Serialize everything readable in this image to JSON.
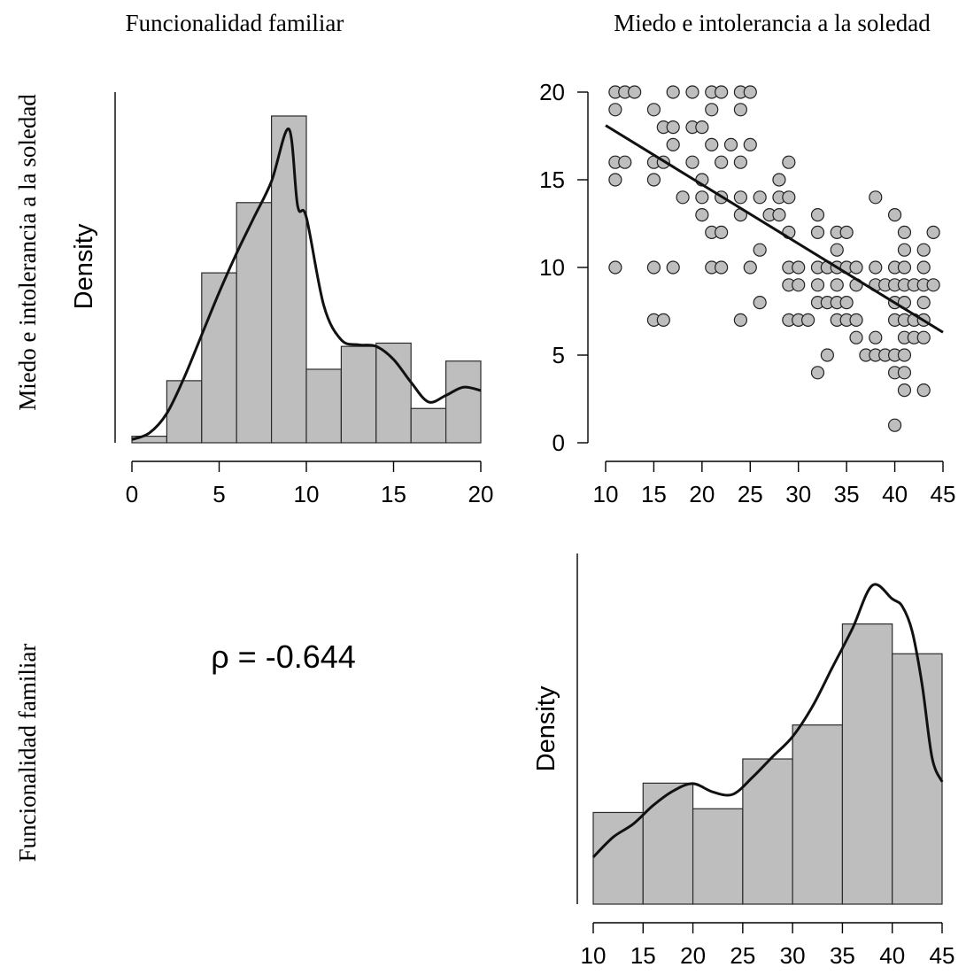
{
  "column_labels": [
    "Funcionalidad familiar",
    "Miedo e intolerancia a la soledad"
  ],
  "row_labels": [
    "Miedo e intolerancia a la soledad",
    "Funcionalidad familiar"
  ],
  "correlation_text": "ρ = -0.644",
  "colors": {
    "bar_fill": "#bebebe",
    "point_fill": "#bebebe",
    "line": "#111111"
  },
  "chart_data": [
    {
      "type": "bar",
      "panel": "top-left",
      "title": "",
      "xlabel": "",
      "ylabel": "Density",
      "xlim": [
        0,
        20
      ],
      "xticks": [
        0,
        5,
        10,
        15,
        20
      ],
      "bin_edges": [
        0,
        2,
        4,
        6,
        8,
        10,
        12,
        14,
        16,
        18,
        20
      ],
      "density": [
        0.002,
        0.019,
        0.052,
        0.0735,
        0.1,
        0.0225,
        0.0295,
        0.0305,
        0.0105,
        0.025
      ],
      "kde": {
        "x": [
          0,
          1,
          2,
          3,
          4,
          5,
          6,
          7,
          8,
          9,
          9.5,
          10,
          11,
          12,
          13,
          14,
          15,
          16,
          17,
          18,
          19,
          20
        ],
        "y": [
          0.001,
          0.003,
          0.009,
          0.02,
          0.033,
          0.046,
          0.058,
          0.069,
          0.08,
          0.096,
          0.0725,
          0.069,
          0.042,
          0.0315,
          0.03,
          0.0295,
          0.0255,
          0.0185,
          0.0125,
          0.0145,
          0.017,
          0.016
        ]
      }
    },
    {
      "type": "scatter",
      "panel": "top-right",
      "title": "",
      "xlabel": "",
      "ylabel": "",
      "xlim": [
        10,
        45
      ],
      "ylim": [
        0,
        20
      ],
      "xticks": [
        10,
        15,
        20,
        25,
        30,
        35,
        40,
        45
      ],
      "yticks": [
        0,
        5,
        10,
        15,
        20
      ],
      "points": [
        [
          11,
          20
        ],
        [
          12,
          20
        ],
        [
          13,
          20
        ],
        [
          17,
          20
        ],
        [
          19,
          20
        ],
        [
          21,
          20
        ],
        [
          22,
          20
        ],
        [
          24,
          20
        ],
        [
          25,
          20
        ],
        [
          11,
          19
        ],
        [
          15,
          19
        ],
        [
          21,
          19
        ],
        [
          24,
          19
        ],
        [
          16,
          18
        ],
        [
          17,
          18
        ],
        [
          19,
          18
        ],
        [
          20,
          18
        ],
        [
          17,
          17
        ],
        [
          21,
          17
        ],
        [
          23,
          17
        ],
        [
          25,
          17
        ],
        [
          11,
          16
        ],
        [
          12,
          16
        ],
        [
          15,
          16
        ],
        [
          16,
          16
        ],
        [
          19,
          16
        ],
        [
          22,
          16
        ],
        [
          24,
          16
        ],
        [
          29,
          16
        ],
        [
          11,
          15
        ],
        [
          15,
          15
        ],
        [
          20,
          15
        ],
        [
          28,
          15
        ],
        [
          18,
          14
        ],
        [
          20,
          14
        ],
        [
          22,
          14
        ],
        [
          24,
          14
        ],
        [
          26,
          14
        ],
        [
          28,
          14
        ],
        [
          29,
          14
        ],
        [
          38,
          14
        ],
        [
          20,
          13
        ],
        [
          24,
          13
        ],
        [
          27,
          13
        ],
        [
          28,
          13
        ],
        [
          32,
          13
        ],
        [
          40,
          13
        ],
        [
          21,
          12
        ],
        [
          22,
          12
        ],
        [
          29,
          12
        ],
        [
          32,
          12
        ],
        [
          34,
          12
        ],
        [
          35,
          12
        ],
        [
          41,
          12
        ],
        [
          44,
          12
        ],
        [
          26,
          11
        ],
        [
          34,
          11
        ],
        [
          41,
          11
        ],
        [
          43,
          11
        ],
        [
          11,
          10
        ],
        [
          15,
          10
        ],
        [
          17,
          10
        ],
        [
          21,
          10
        ],
        [
          22,
          10
        ],
        [
          25,
          10
        ],
        [
          29,
          10
        ],
        [
          30,
          10
        ],
        [
          32,
          10
        ],
        [
          33,
          10
        ],
        [
          34,
          10
        ],
        [
          35,
          10
        ],
        [
          36,
          10
        ],
        [
          38,
          10
        ],
        [
          40,
          10
        ],
        [
          41,
          10
        ],
        [
          43,
          10
        ],
        [
          29,
          9
        ],
        [
          30,
          9
        ],
        [
          32,
          9
        ],
        [
          34,
          9
        ],
        [
          36,
          9
        ],
        [
          38,
          9
        ],
        [
          39,
          9
        ],
        [
          40,
          9
        ],
        [
          41,
          9
        ],
        [
          42,
          9
        ],
        [
          43,
          9
        ],
        [
          44,
          9
        ],
        [
          26,
          8
        ],
        [
          32,
          8
        ],
        [
          33,
          8
        ],
        [
          34,
          8
        ],
        [
          35,
          8
        ],
        [
          40,
          8
        ],
        [
          41,
          8
        ],
        [
          43,
          8
        ],
        [
          15,
          7
        ],
        [
          16,
          7
        ],
        [
          24,
          7
        ],
        [
          29,
          7
        ],
        [
          30,
          7
        ],
        [
          31,
          7
        ],
        [
          34,
          7
        ],
        [
          35,
          7
        ],
        [
          36,
          7
        ],
        [
          40,
          7
        ],
        [
          41,
          7
        ],
        [
          42,
          7
        ],
        [
          43,
          7
        ],
        [
          36,
          6
        ],
        [
          38,
          6
        ],
        [
          41,
          6
        ],
        [
          42,
          6
        ],
        [
          43,
          6
        ],
        [
          33,
          5
        ],
        [
          37,
          5
        ],
        [
          38,
          5
        ],
        [
          39,
          5
        ],
        [
          40,
          5
        ],
        [
          41,
          5
        ],
        [
          32,
          4
        ],
        [
          40,
          4
        ],
        [
          41,
          4
        ],
        [
          41,
          3
        ],
        [
          43,
          3
        ],
        [
          40,
          1
        ]
      ],
      "fit_line": {
        "x": [
          10,
          45
        ],
        "y": [
          18.1,
          6.3
        ]
      }
    },
    {
      "type": "text",
      "panel": "bottom-left",
      "text": "ρ = -0.644",
      "rho": -0.644
    },
    {
      "type": "bar",
      "panel": "bottom-right",
      "title": "",
      "xlabel": "",
      "ylabel": "Density",
      "xlim": [
        10,
        45
      ],
      "xticks": [
        10,
        15,
        20,
        25,
        30,
        35,
        40,
        45
      ],
      "bin_edges": [
        10,
        15,
        20,
        25,
        30,
        35,
        40,
        45
      ],
      "density": [
        0.0197,
        0.026,
        0.0205,
        0.0312,
        0.0385,
        0.0602,
        0.0538
      ],
      "kde": {
        "x": [
          10,
          12,
          14,
          16,
          18,
          20,
          22,
          24,
          26,
          28,
          30,
          32,
          34,
          36,
          38,
          40,
          41,
          42,
          43,
          44,
          45
        ],
        "y": [
          0.0101,
          0.0144,
          0.0172,
          0.0212,
          0.0243,
          0.0259,
          0.0241,
          0.0236,
          0.0273,
          0.0317,
          0.036,
          0.0425,
          0.0509,
          0.0592,
          0.0685,
          0.0656,
          0.064,
          0.0586,
          0.0471,
          0.0314,
          0.0263
        ]
      }
    }
  ]
}
